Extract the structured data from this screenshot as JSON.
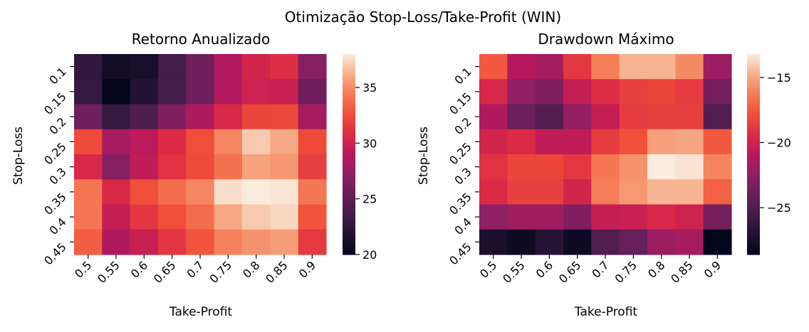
{
  "suptitle": "Otimização Stop-Loss/Take-Profit (WIN)",
  "chart_data": [
    {
      "type": "heatmap",
      "title": "Retorno Anualizado",
      "xlabel": "Take-Profit",
      "ylabel": "Stop-Loss",
      "x": [
        "0.5",
        "0.55",
        "0.6",
        "0.65",
        "0.7",
        "0.75",
        "0.8",
        "0.85",
        "0.9"
      ],
      "y": [
        "0.1",
        "0.15",
        "0.2",
        "0.25",
        "0.3",
        "0.35",
        "0.4",
        "0.45"
      ],
      "values": [
        [
          22.8,
          21.0,
          21.2,
          23.8,
          25.8,
          28.8,
          30.2,
          31.0,
          26.8
        ],
        [
          23.0,
          20.1,
          22.0,
          23.8,
          25.8,
          28.8,
          30.0,
          29.8,
          25.8
        ],
        [
          25.8,
          23.0,
          24.2,
          26.5,
          28.6,
          30.6,
          32.2,
          32.3,
          28.2
        ],
        [
          32.4,
          28.2,
          29.2,
          30.8,
          32.6,
          34.8,
          37.0,
          36.0,
          32.4
        ],
        [
          30.6,
          26.8,
          29.4,
          31.2,
          32.4,
          34.0,
          35.8,
          35.4,
          31.8
        ],
        [
          34.2,
          30.6,
          32.6,
          33.8,
          34.8,
          37.6,
          38.2,
          37.8,
          34.2
        ],
        [
          34.2,
          29.6,
          31.4,
          32.6,
          33.8,
          36.0,
          37.0,
          37.4,
          32.8
        ],
        [
          33.2,
          28.6,
          29.8,
          31.4,
          32.8,
          34.6,
          35.2,
          35.6,
          31.6
        ]
      ],
      "colorbar": {
        "ticks": [
          20,
          25,
          30,
          35
        ],
        "range": [
          20,
          38
        ]
      },
      "colormap": "rocket"
    },
    {
      "type": "heatmap",
      "title": "Drawdown Máximo",
      "xlabel": "Take-Profit",
      "ylabel": "Stop-Loss",
      "x": [
        "0.5",
        "0.55",
        "0.6",
        "0.65",
        "0.7",
        "0.75",
        "0.8",
        "0.85",
        "0.9"
      ],
      "y": [
        "0.1",
        "0.15",
        "0.2",
        "0.25",
        "0.3",
        "0.35",
        "0.4",
        "0.45"
      ],
      "values": [
        [
          -17.4,
          -21.0,
          -21.6,
          -18.8,
          -16.2,
          -14.6,
          -14.6,
          -15.8,
          -22.0
        ],
        [
          -19.6,
          -22.4,
          -23.0,
          -20.4,
          -19.2,
          -18.4,
          -18.2,
          -18.6,
          -23.4
        ],
        [
          -21.2,
          -23.8,
          -24.8,
          -22.2,
          -20.4,
          -18.6,
          -18.4,
          -18.4,
          -24.8
        ],
        [
          -19.8,
          -19.4,
          -20.6,
          -20.6,
          -18.6,
          -17.8,
          -15.2,
          -15.0,
          -17.4
        ],
        [
          -19.0,
          -18.2,
          -18.2,
          -18.8,
          -16.4,
          -15.6,
          -13.2,
          -13.4,
          -16.0
        ],
        [
          -19.4,
          -18.4,
          -18.4,
          -19.8,
          -16.2,
          -15.4,
          -14.6,
          -14.6,
          -17.2
        ],
        [
          -22.4,
          -21.8,
          -21.8,
          -23.0,
          -20.4,
          -20.2,
          -19.6,
          -20.0,
          -23.4
        ],
        [
          -27.4,
          -28.0,
          -26.8,
          -28.0,
          -24.8,
          -24.0,
          -22.0,
          -21.6,
          -28.6
        ]
      ],
      "colorbar": {
        "ticks": [
          -25,
          -20,
          -15
        ],
        "range": [
          -28.6,
          -13.2
        ]
      },
      "colormap": "rocket"
    }
  ]
}
